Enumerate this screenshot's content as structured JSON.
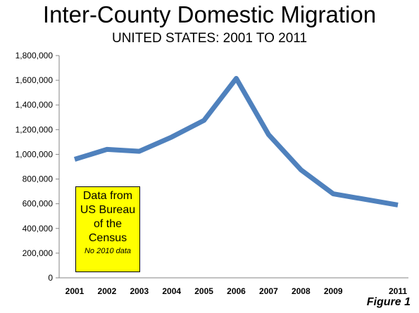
{
  "chart_data": {
    "type": "line",
    "title": "Inter-County Domestic Migration",
    "subtitle": "UNITED STATES: 2001 TO 2011",
    "xlabel": "",
    "ylabel": "",
    "x_ticks": [
      "2001",
      "2002",
      "2003",
      "2004",
      "2005",
      "2006",
      "2007",
      "2008",
      "2009",
      "2011"
    ],
    "y_ticks": [
      "0",
      "200,000",
      "400,000",
      "600,000",
      "800,000",
      "1,000,000",
      "1,200,000",
      "1,400,000",
      "1,600,000",
      "1,800,000"
    ],
    "ylim": [
      0,
      1800000
    ],
    "xlim": [
      2001,
      2011
    ],
    "grid": false,
    "series": [
      {
        "color": "#4F81BD",
        "x": [
          2001,
          2002,
          2003,
          2004,
          2005,
          2006,
          2007,
          2008,
          2009,
          2011
        ],
        "values": [
          960000,
          1040000,
          1025000,
          1140000,
          1275000,
          1615000,
          1160000,
          875000,
          680000,
          590000
        ]
      }
    ]
  },
  "annotation": {
    "text": "Data from\nUS Bureau\nof the\nCensus",
    "footnote": "No 2010 data",
    "background": "#FFFF00"
  },
  "figure_label": "Figure 1"
}
